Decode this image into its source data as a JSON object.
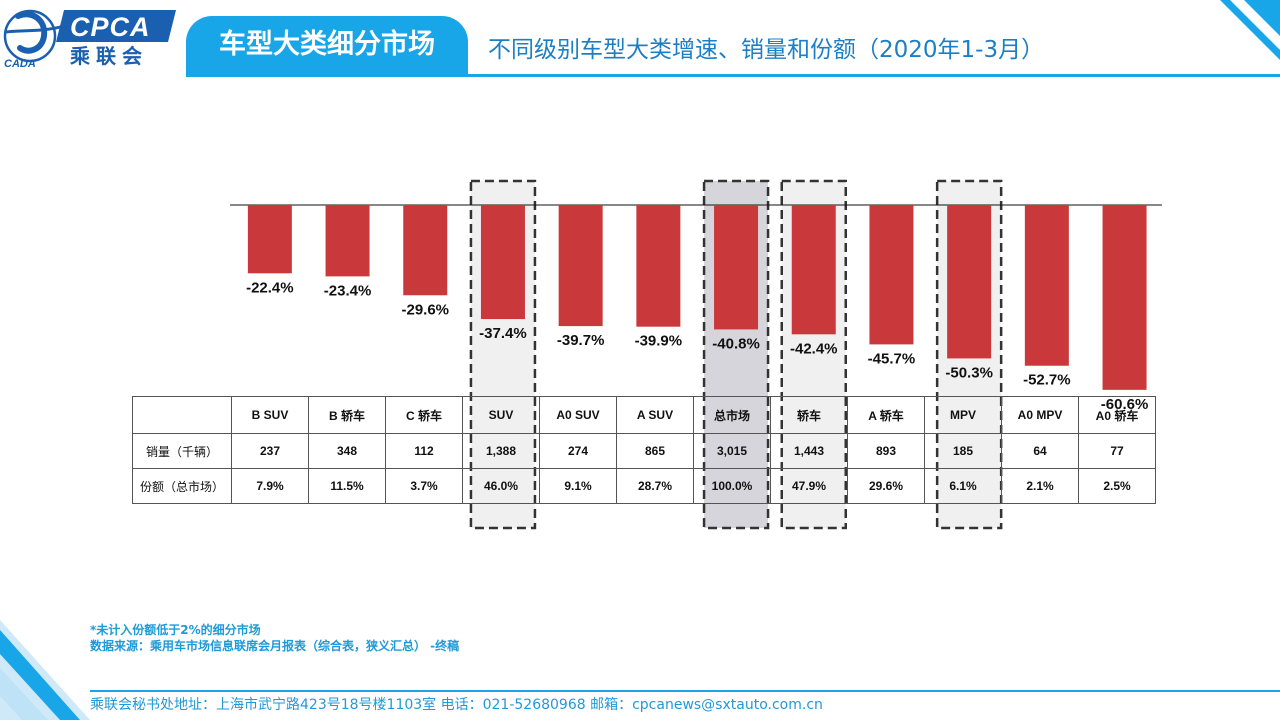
{
  "header": {
    "logo_text": "CPCA",
    "logo_sub": "乘联会",
    "logo_small": "CADA",
    "section_title": "车型大类细分市场",
    "page_title": "不同级别车型大类增速、销量和份额（2020年1-3月）"
  },
  "colors": {
    "accent": "#18a6e9",
    "bar": "#c9393b",
    "highlight": "#f0f0f0",
    "highlight_dark": "#d6d5dc"
  },
  "chart_data": {
    "type": "bar",
    "categories": [
      "B SUV",
      "B 轿车",
      "C 轿车",
      "SUV",
      "A0 SUV",
      "A SUV",
      "总市场",
      "轿车",
      "A 轿车",
      "MPV",
      "A0 MPV",
      "A0 轿车"
    ],
    "values": [
      -22.4,
      -23.4,
      -29.6,
      -37.4,
      -39.7,
      -39.9,
      -40.8,
      -42.4,
      -45.7,
      -50.3,
      -52.7,
      -60.6
    ],
    "value_labels": [
      "-22.4%",
      "-23.4%",
      "-29.6%",
      "-37.4%",
      "-39.7%",
      "-39.9%",
      "-40.8%",
      "-42.4%",
      "-45.7%",
      "-50.3%",
      "-52.7%",
      "-60.6%"
    ],
    "unit": "%",
    "ylim": [
      -65,
      0
    ],
    "highlighted": [
      "SUV",
      "总市场",
      "轿车",
      "MPV"
    ],
    "highlighted_dark": [
      "总市场"
    ]
  },
  "table": {
    "rows": [
      {
        "label": "销量（千辆）",
        "values": [
          "237",
          "348",
          "112",
          "1,388",
          "274",
          "865",
          "3,015",
          "1,443",
          "893",
          "185",
          "64",
          "77"
        ]
      },
      {
        "label": "份额（总市场）",
        "values": [
          "7.9%",
          "11.5%",
          "3.7%",
          "46.0%",
          "9.1%",
          "28.7%",
          "100.0%",
          "47.9%",
          "29.6%",
          "6.1%",
          "2.1%",
          "2.5%"
        ]
      }
    ]
  },
  "notes": {
    "line1": "*未计入份额低于2%的细分市场",
    "line2": "数据来源：乘用车市场信息联席会月报表（综合表，狭义汇总）    -终稿"
  },
  "footer": {
    "text": "乘联会秘书处地址：上海市武宁路423号18号楼1103室  电话：021-52680968   邮箱：cpcanews@sxtauto.com.cn"
  }
}
